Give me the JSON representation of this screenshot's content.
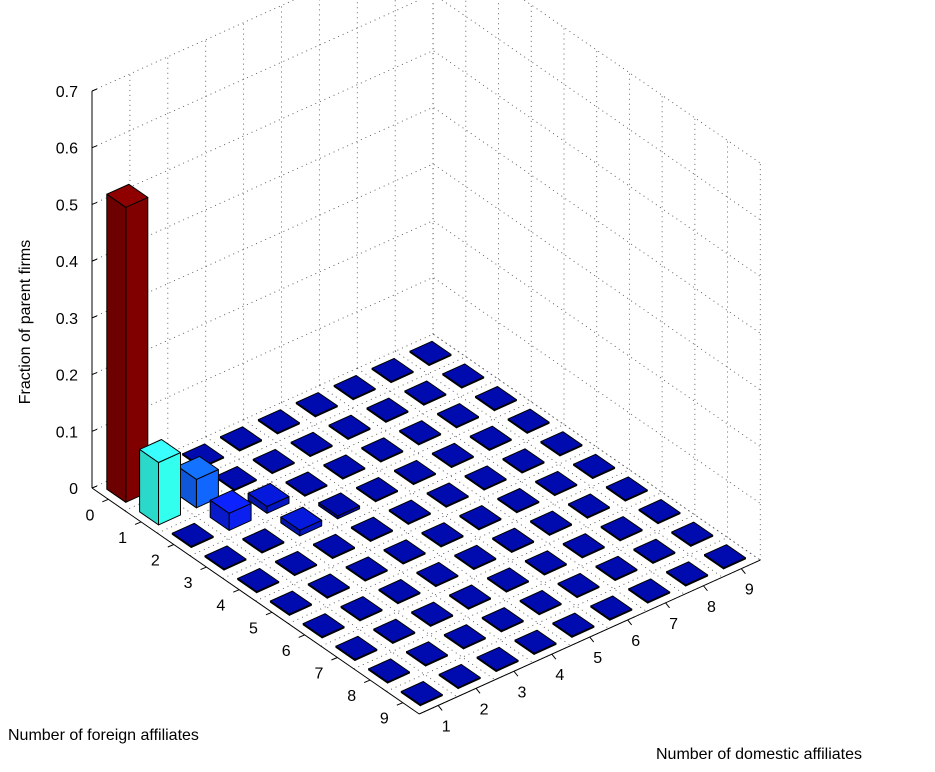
{
  "chart_data": {
    "type": "bar3d",
    "zlabel": "Fraction of parent firms",
    "xlabel": "Number of foreign affiliates",
    "ylabel": "Number of domestic affiliates",
    "x_ticks": [
      "0",
      "1",
      "2",
      "3",
      "4",
      "5",
      "6",
      "7",
      "8",
      "9"
    ],
    "y_ticks": [
      "1",
      "2",
      "3",
      "4",
      "5",
      "6",
      "7",
      "8",
      "9"
    ],
    "z_ticks": [
      "0",
      "0.1",
      "0.2",
      "0.3",
      "0.4",
      "0.5",
      "0.6",
      "0.7"
    ],
    "zlim": [
      0,
      0.7
    ],
    "grid": true,
    "bars": [
      {
        "foreign": 0,
        "domestic": 1,
        "value": 0.52,
        "color": "#800000"
      },
      {
        "foreign": 1,
        "domestic": 1,
        "value": 0.11,
        "color": "#33ffee"
      },
      {
        "foreign": 0,
        "domestic": 2,
        "value": 0.005,
        "color": "#000a9c"
      },
      {
        "foreign": 1,
        "domestic": 2,
        "value": 0.05,
        "color": "#1166ff"
      },
      {
        "foreign": 2,
        "domestic": 2,
        "value": 0.03,
        "color": "#0b1fee"
      },
      {
        "foreign": 2,
        "domestic": 3,
        "value": 0.012,
        "color": "#0416c4"
      },
      {
        "foreign": 3,
        "domestic": 3,
        "value": 0.01,
        "color": "#0416c4"
      },
      {
        "foreign": 3,
        "domestic": 4,
        "value": 0.005,
        "color": "#000a9c"
      }
    ],
    "base_value": 0.002,
    "base_color": "#000a9c"
  }
}
